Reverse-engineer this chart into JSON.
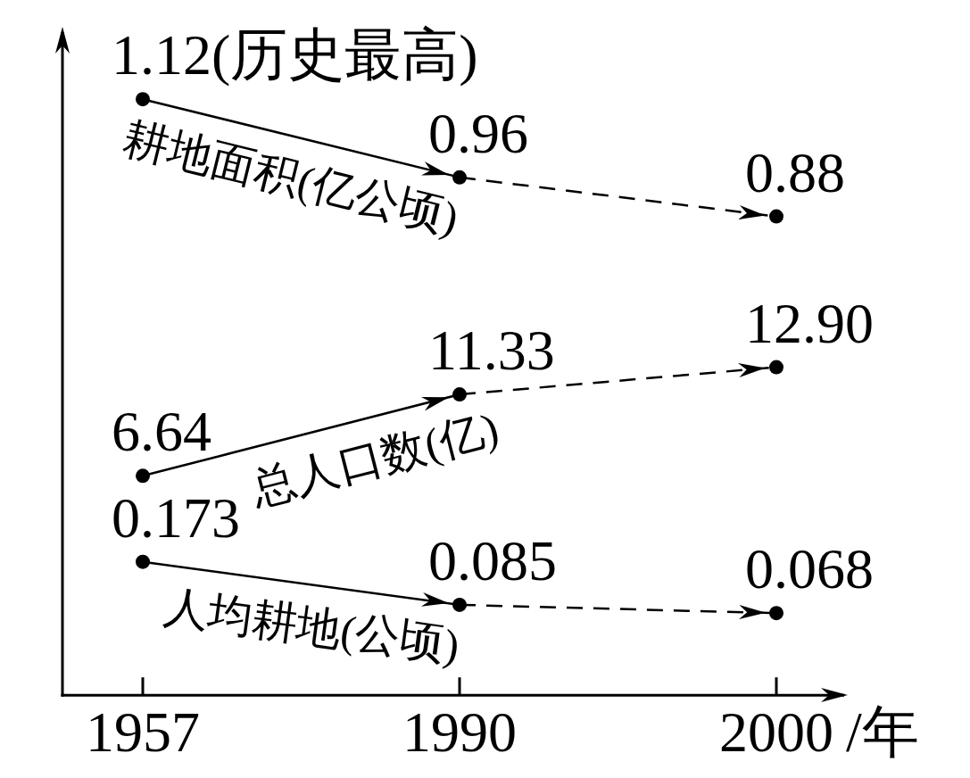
{
  "chart_data": {
    "type": "line",
    "categories": [
      "1957",
      "1990",
      "2000"
    ],
    "xlabel": "/年",
    "tick_labels": "x",
    "marker": "circle",
    "series": [
      {
        "name": "耕地面积(亿公顷)",
        "color": "#000000",
        "axis": "y",
        "line_style": "solid",
        "values": [
          1.12,
          0.96,
          null
        ],
        "value_labels": [
          "1.12(历史最高)",
          "0.96",
          null
        ]
      },
      {
        "color": "#000000",
        "axis": "y",
        "line_style": "dashed",
        "values": [
          null,
          0.96,
          0.88
        ],
        "value_labels": [
          null,
          null,
          "0.88"
        ]
      },
      {
        "name": "总人口数(亿)",
        "color": "#000000",
        "axis": "y2",
        "line_style": "solid",
        "values": [
          6.64,
          11.33,
          null
        ],
        "value_labels": [
          "6.64",
          "11.33",
          null
        ]
      },
      {
        "color": "#000000",
        "axis": "y2",
        "line_style": "dashed",
        "values": [
          null,
          11.33,
          12.9
        ],
        "value_labels": [
          null,
          null,
          "12.90"
        ]
      },
      {
        "name": "人均耕地(公顷)",
        "color": "#000000",
        "axis": "y",
        "line_style": "solid",
        "values": [
          0.173,
          0.085,
          null
        ],
        "value_labels": [
          "0.173",
          "0.085",
          null
        ]
      },
      {
        "color": "#000000",
        "axis": "y",
        "line_style": "dashed",
        "values": [
          null,
          0.085,
          0.068
        ],
        "value_labels": [
          null,
          null,
          "0.068"
        ]
      }
    ],
    "ylim": [
      -0.1,
      1.25
    ],
    "y2lim": [
      -6,
      32
    ]
  }
}
